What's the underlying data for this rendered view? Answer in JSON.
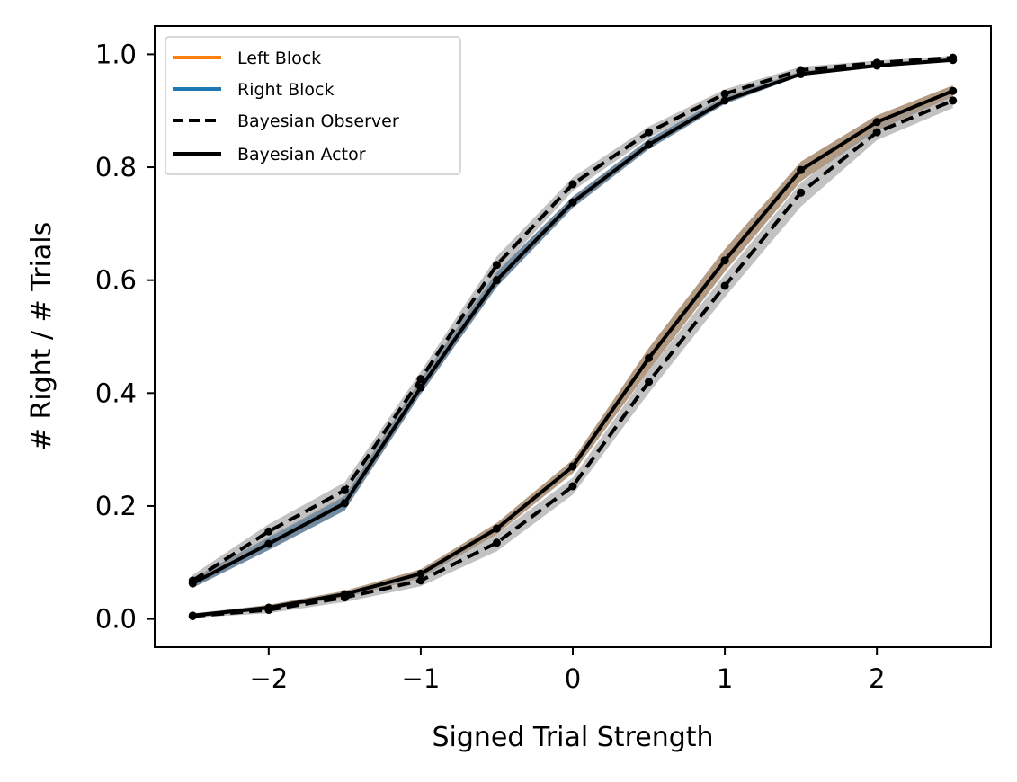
{
  "chart_data": {
    "type": "line",
    "title": "",
    "xlabel": "Signed Trial Strength",
    "ylabel": "# Right / # Trials",
    "xlim": [
      -2.75,
      2.75
    ],
    "ylim": [
      -0.05,
      1.05
    ],
    "xticks": [
      -2,
      -1,
      0,
      1,
      2
    ],
    "xtick_labels": [
      "−2",
      "−1",
      "0",
      "1",
      "2"
    ],
    "yticks": [
      0.0,
      0.2,
      0.4,
      0.6,
      0.8,
      1.0
    ],
    "ytick_labels": [
      "0.0",
      "0.2",
      "0.4",
      "0.6",
      "0.8",
      "1.0"
    ],
    "grid": false,
    "legend_position": "top-left",
    "x": [
      -2.5,
      -2.0,
      -1.5,
      -1.0,
      -0.5,
      0.0,
      0.5,
      1.0,
      1.5,
      2.0,
      2.5
    ],
    "series": [
      {
        "name": "Left Block",
        "color": "#ff7f0e",
        "style": "solid",
        "values": [
          0.006,
          0.02,
          0.044,
          0.08,
          0.16,
          0.27,
          0.46,
          0.635,
          0.795,
          0.88,
          0.935
        ],
        "band_lower": [
          0.004,
          0.016,
          0.038,
          0.072,
          0.15,
          0.258,
          0.44,
          0.615,
          0.775,
          0.865,
          0.925
        ],
        "band_upper": [
          0.009,
          0.025,
          0.05,
          0.088,
          0.17,
          0.282,
          0.48,
          0.655,
          0.81,
          0.892,
          0.945
        ]
      },
      {
        "name": "Right Block",
        "color": "#1f77b4",
        "style": "solid",
        "values": [
          0.063,
          0.133,
          0.205,
          0.41,
          0.6,
          0.738,
          0.84,
          0.918,
          0.965,
          0.98,
          0.99
        ],
        "band_lower": [
          0.055,
          0.122,
          0.192,
          0.398,
          0.588,
          0.728,
          0.832,
          0.912,
          0.962,
          0.977,
          0.988
        ],
        "band_upper": [
          0.072,
          0.145,
          0.218,
          0.425,
          0.615,
          0.748,
          0.85,
          0.925,
          0.97,
          0.984,
          0.993
        ]
      },
      {
        "name": "Bayesian Observer",
        "color": "#000000",
        "style": "dashed",
        "curves": [
          [
            0.005,
            0.016,
            0.038,
            0.068,
            0.135,
            0.235,
            0.42,
            0.59,
            0.755,
            0.862,
            0.918
          ],
          [
            0.068,
            0.155,
            0.228,
            0.425,
            0.627,
            0.77,
            0.862,
            0.93,
            0.972,
            0.985,
            0.994
          ]
        ],
        "bands_lower": [
          [
            0.002,
            0.01,
            0.03,
            0.058,
            0.12,
            0.22,
            0.4,
            0.57,
            0.73,
            0.848,
            0.905
          ],
          [
            0.058,
            0.142,
            0.215,
            0.412,
            0.612,
            0.758,
            0.852,
            0.922,
            0.967,
            0.981,
            0.991
          ]
        ],
        "bands_upper": [
          [
            0.01,
            0.024,
            0.048,
            0.08,
            0.15,
            0.25,
            0.44,
            0.61,
            0.772,
            0.875,
            0.928
          ],
          [
            0.078,
            0.168,
            0.242,
            0.438,
            0.642,
            0.782,
            0.872,
            0.938,
            0.978,
            0.989,
            0.997
          ]
        ]
      },
      {
        "name": "Bayesian Actor",
        "color": "#000000",
        "style": "solid",
        "curves": [
          [
            0.006,
            0.02,
            0.044,
            0.08,
            0.16,
            0.27,
            0.462,
            0.635,
            0.795,
            0.88,
            0.935
          ],
          [
            0.063,
            0.133,
            0.205,
            0.41,
            0.6,
            0.738,
            0.84,
            0.918,
            0.965,
            0.98,
            0.99
          ]
        ]
      }
    ]
  }
}
